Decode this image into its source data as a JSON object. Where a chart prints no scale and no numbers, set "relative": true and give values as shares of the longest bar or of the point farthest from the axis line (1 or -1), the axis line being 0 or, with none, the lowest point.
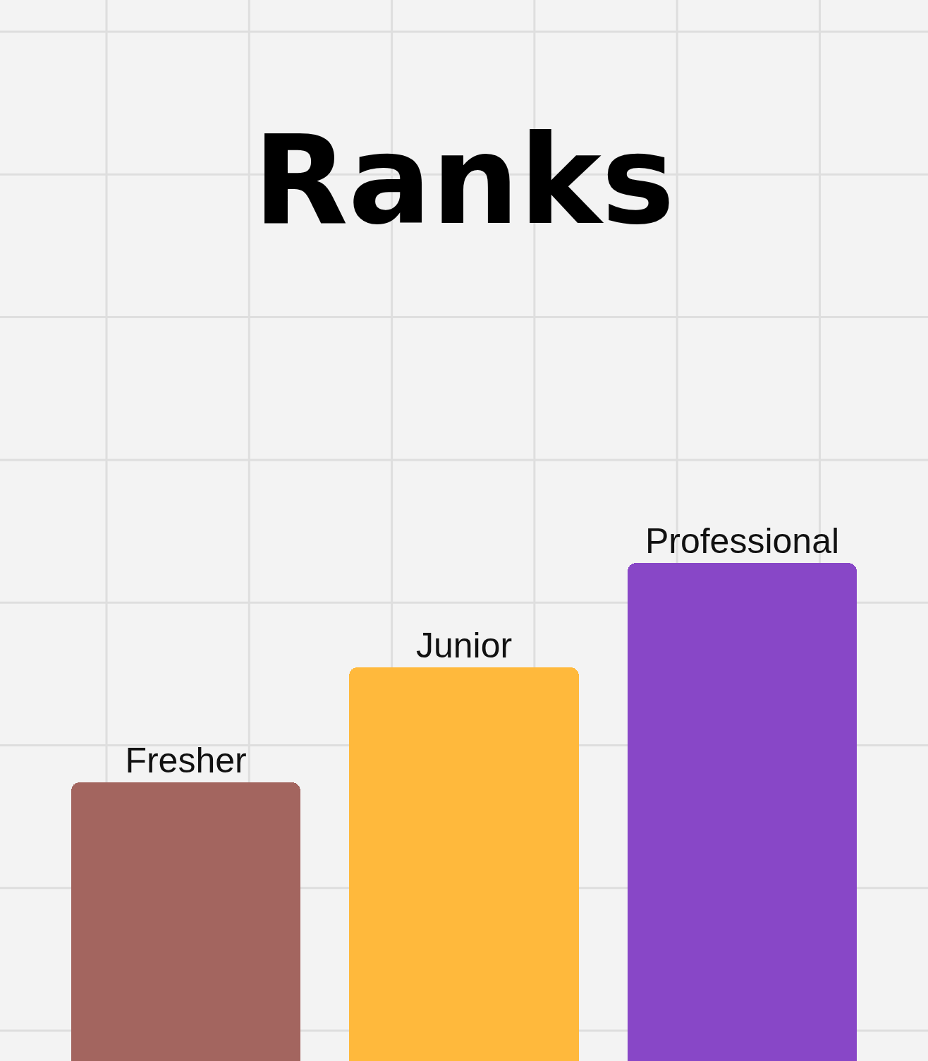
{
  "chart_data": {
    "type": "bar",
    "title": "Ranks",
    "relative": true,
    "grid": true,
    "categories": [
      "Fresher",
      "Junior",
      "Professional"
    ],
    "values": [
      0.56,
      0.79,
      1
    ],
    "colors": [
      "#a3655f",
      "#ffb93c",
      "#8847c7"
    ]
  }
}
